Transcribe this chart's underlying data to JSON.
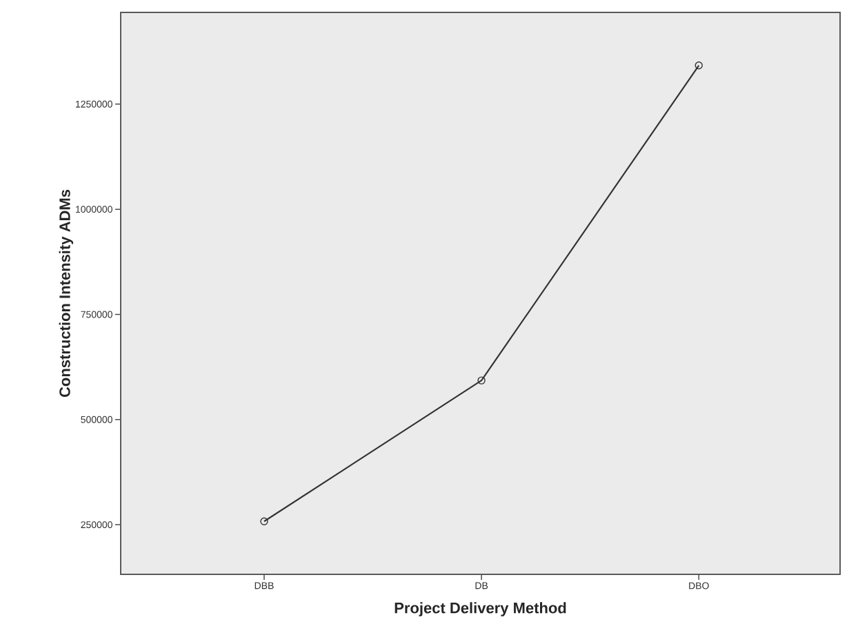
{
  "chart_data": {
    "type": "line",
    "xlabel": "Project Delivery Method",
    "ylabel": "Construction Intensity ADMs",
    "categories": [
      "DBB",
      "DB",
      "DBO"
    ],
    "values": [
      258000,
      593000,
      1342000
    ],
    "color": "#333333",
    "marker": "circle",
    "ylim": [
      132000,
      1468000
    ],
    "yticks": [
      250000,
      500000,
      750000,
      1000000,
      1250000
    ]
  }
}
